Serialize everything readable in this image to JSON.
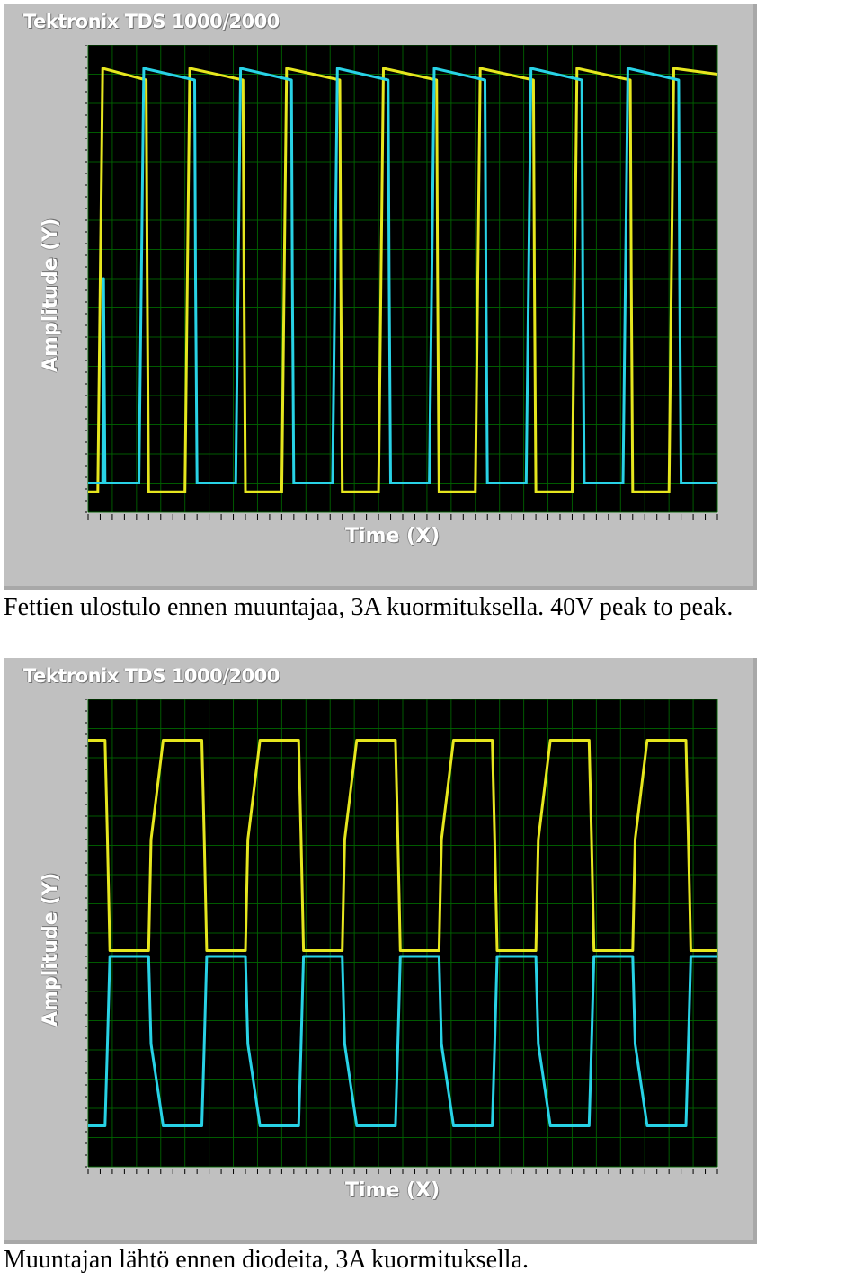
{
  "scope_title": "Tektronix TDS 1000/2000",
  "ylabel": "Amplitude (Y)",
  "xlabel": "Time (X)",
  "captions": {
    "top": "Fettien ulostulo ennen muuntajaa, 3A kuormituksella. 40V peak to peak.",
    "bottom": "Muuntajan lähtö ennen diodeita, 3A kuormituksella."
  },
  "colors": {
    "background": "#000000",
    "grid": "#006400",
    "yellow_trace": "#e6e61e",
    "cyan_trace": "#28d2e6",
    "frame": "#c0c0c0"
  },
  "chart_data": [
    {
      "type": "line",
      "title": "Tektronix TDS 1000/2000",
      "xlabel": "Time (X)",
      "ylabel": "Amplitude (Y)",
      "grid": true,
      "x_divisions": 13,
      "y_divisions": 8,
      "xlim": [
        0,
        13
      ],
      "ylim": [
        0,
        8
      ],
      "series": [
        {
          "color": "#e6e61e",
          "x": [
            0,
            0.2,
            0.25,
            0.3,
            1.2,
            1.22,
            1.25,
            2.0,
            2.05,
            2.1,
            3.2,
            3.22,
            3.25,
            4.0,
            4.05,
            4.1,
            5.2,
            5.22,
            5.25,
            6.0,
            6.05,
            6.1,
            7.2,
            7.22,
            7.25,
            8.0,
            8.05,
            8.1,
            9.2,
            9.22,
            9.25,
            10.0,
            10.05,
            10.1,
            11.2,
            11.22,
            11.25,
            12.0,
            12.05,
            12.1,
            13.0
          ],
          "y": [
            0.35,
            0.35,
            4.0,
            7.6,
            7.4,
            4.0,
            0.35,
            0.35,
            4.0,
            7.6,
            7.4,
            4.0,
            0.35,
            0.35,
            4.0,
            7.6,
            7.4,
            4.0,
            0.35,
            0.35,
            4.0,
            7.6,
            7.4,
            4.0,
            0.35,
            0.35,
            4.0,
            7.6,
            7.4,
            4.0,
            0.35,
            0.35,
            4.0,
            7.6,
            7.4,
            4.0,
            0.35,
            0.35,
            4.0,
            7.6,
            7.5
          ]
        },
        {
          "color": "#28d2e6",
          "x": [
            0,
            0.3,
            0.32,
            0.35,
            1.05,
            1.1,
            1.15,
            2.2,
            2.22,
            2.25,
            3.05,
            3.1,
            3.15,
            4.2,
            4.22,
            4.25,
            5.05,
            5.1,
            5.15,
            6.2,
            6.22,
            6.25,
            7.05,
            7.1,
            7.15,
            8.2,
            8.22,
            8.25,
            9.05,
            9.1,
            9.15,
            10.2,
            10.22,
            10.25,
            11.05,
            11.1,
            11.15,
            12.2,
            12.22,
            12.25,
            13.0
          ],
          "y": [
            0.5,
            0.5,
            4.0,
            0.5,
            0.5,
            4.0,
            7.6,
            7.4,
            4.0,
            0.5,
            0.5,
            4.0,
            7.6,
            7.4,
            4.0,
            0.5,
            0.5,
            4.0,
            7.6,
            7.4,
            4.0,
            0.5,
            0.5,
            4.0,
            7.6,
            7.4,
            4.0,
            0.5,
            0.5,
            4.0,
            7.6,
            7.4,
            4.0,
            0.5,
            0.5,
            4.0,
            7.6,
            7.4,
            4.0,
            0.5,
            0.5
          ]
        }
      ]
    },
    {
      "type": "line",
      "title": "Tektronix TDS 1000/2000",
      "xlabel": "Time (X)",
      "ylabel": "Amplitude (Y)",
      "grid": true,
      "x_divisions": 13,
      "y_divisions": 8,
      "xlim": [
        0,
        13
      ],
      "ylim": [
        0,
        8
      ],
      "series": [
        {
          "color": "#e6e61e",
          "x": [
            0,
            0.35,
            0.4,
            0.45,
            1.25,
            1.3,
            1.55,
            2.35,
            2.4,
            2.45,
            3.25,
            3.3,
            3.55,
            4.35,
            4.4,
            4.45,
            5.25,
            5.3,
            5.55,
            6.35,
            6.4,
            6.45,
            7.25,
            7.3,
            7.55,
            8.35,
            8.4,
            8.45,
            9.25,
            9.3,
            9.55,
            10.35,
            10.4,
            10.45,
            11.25,
            11.3,
            11.55,
            12.35,
            12.4,
            12.45,
            13.0
          ],
          "y": [
            7.3,
            7.3,
            5.6,
            3.7,
            3.7,
            5.6,
            7.3,
            7.3,
            5.6,
            3.7,
            3.7,
            5.6,
            7.3,
            7.3,
            5.6,
            3.7,
            3.7,
            5.6,
            7.3,
            7.3,
            5.6,
            3.7,
            3.7,
            5.6,
            7.3,
            7.3,
            5.6,
            3.7,
            3.7,
            5.6,
            7.3,
            7.3,
            5.6,
            3.7,
            3.7,
            5.6,
            7.3,
            7.3,
            5.6,
            3.7,
            3.7
          ]
        },
        {
          "color": "#28d2e6",
          "x": [
            0,
            0.35,
            0.4,
            0.45,
            1.25,
            1.3,
            1.55,
            2.35,
            2.4,
            2.45,
            3.25,
            3.3,
            3.55,
            4.35,
            4.4,
            4.45,
            5.25,
            5.3,
            5.55,
            6.35,
            6.4,
            6.45,
            7.25,
            7.3,
            7.55,
            8.35,
            8.4,
            8.45,
            9.25,
            9.3,
            9.55,
            10.35,
            10.4,
            10.45,
            11.25,
            11.3,
            11.55,
            12.35,
            12.4,
            12.45,
            13.0
          ],
          "y": [
            0.7,
            0.7,
            2.1,
            3.6,
            3.6,
            2.1,
            0.7,
            0.7,
            2.1,
            3.6,
            3.6,
            2.1,
            0.7,
            0.7,
            2.1,
            3.6,
            3.6,
            2.1,
            0.7,
            0.7,
            2.1,
            3.6,
            3.6,
            2.1,
            0.7,
            0.7,
            2.1,
            3.6,
            3.6,
            2.1,
            0.7,
            0.7,
            2.1,
            3.6,
            3.6,
            2.1,
            0.7,
            0.7,
            2.1,
            3.6,
            3.6
          ]
        }
      ]
    }
  ]
}
